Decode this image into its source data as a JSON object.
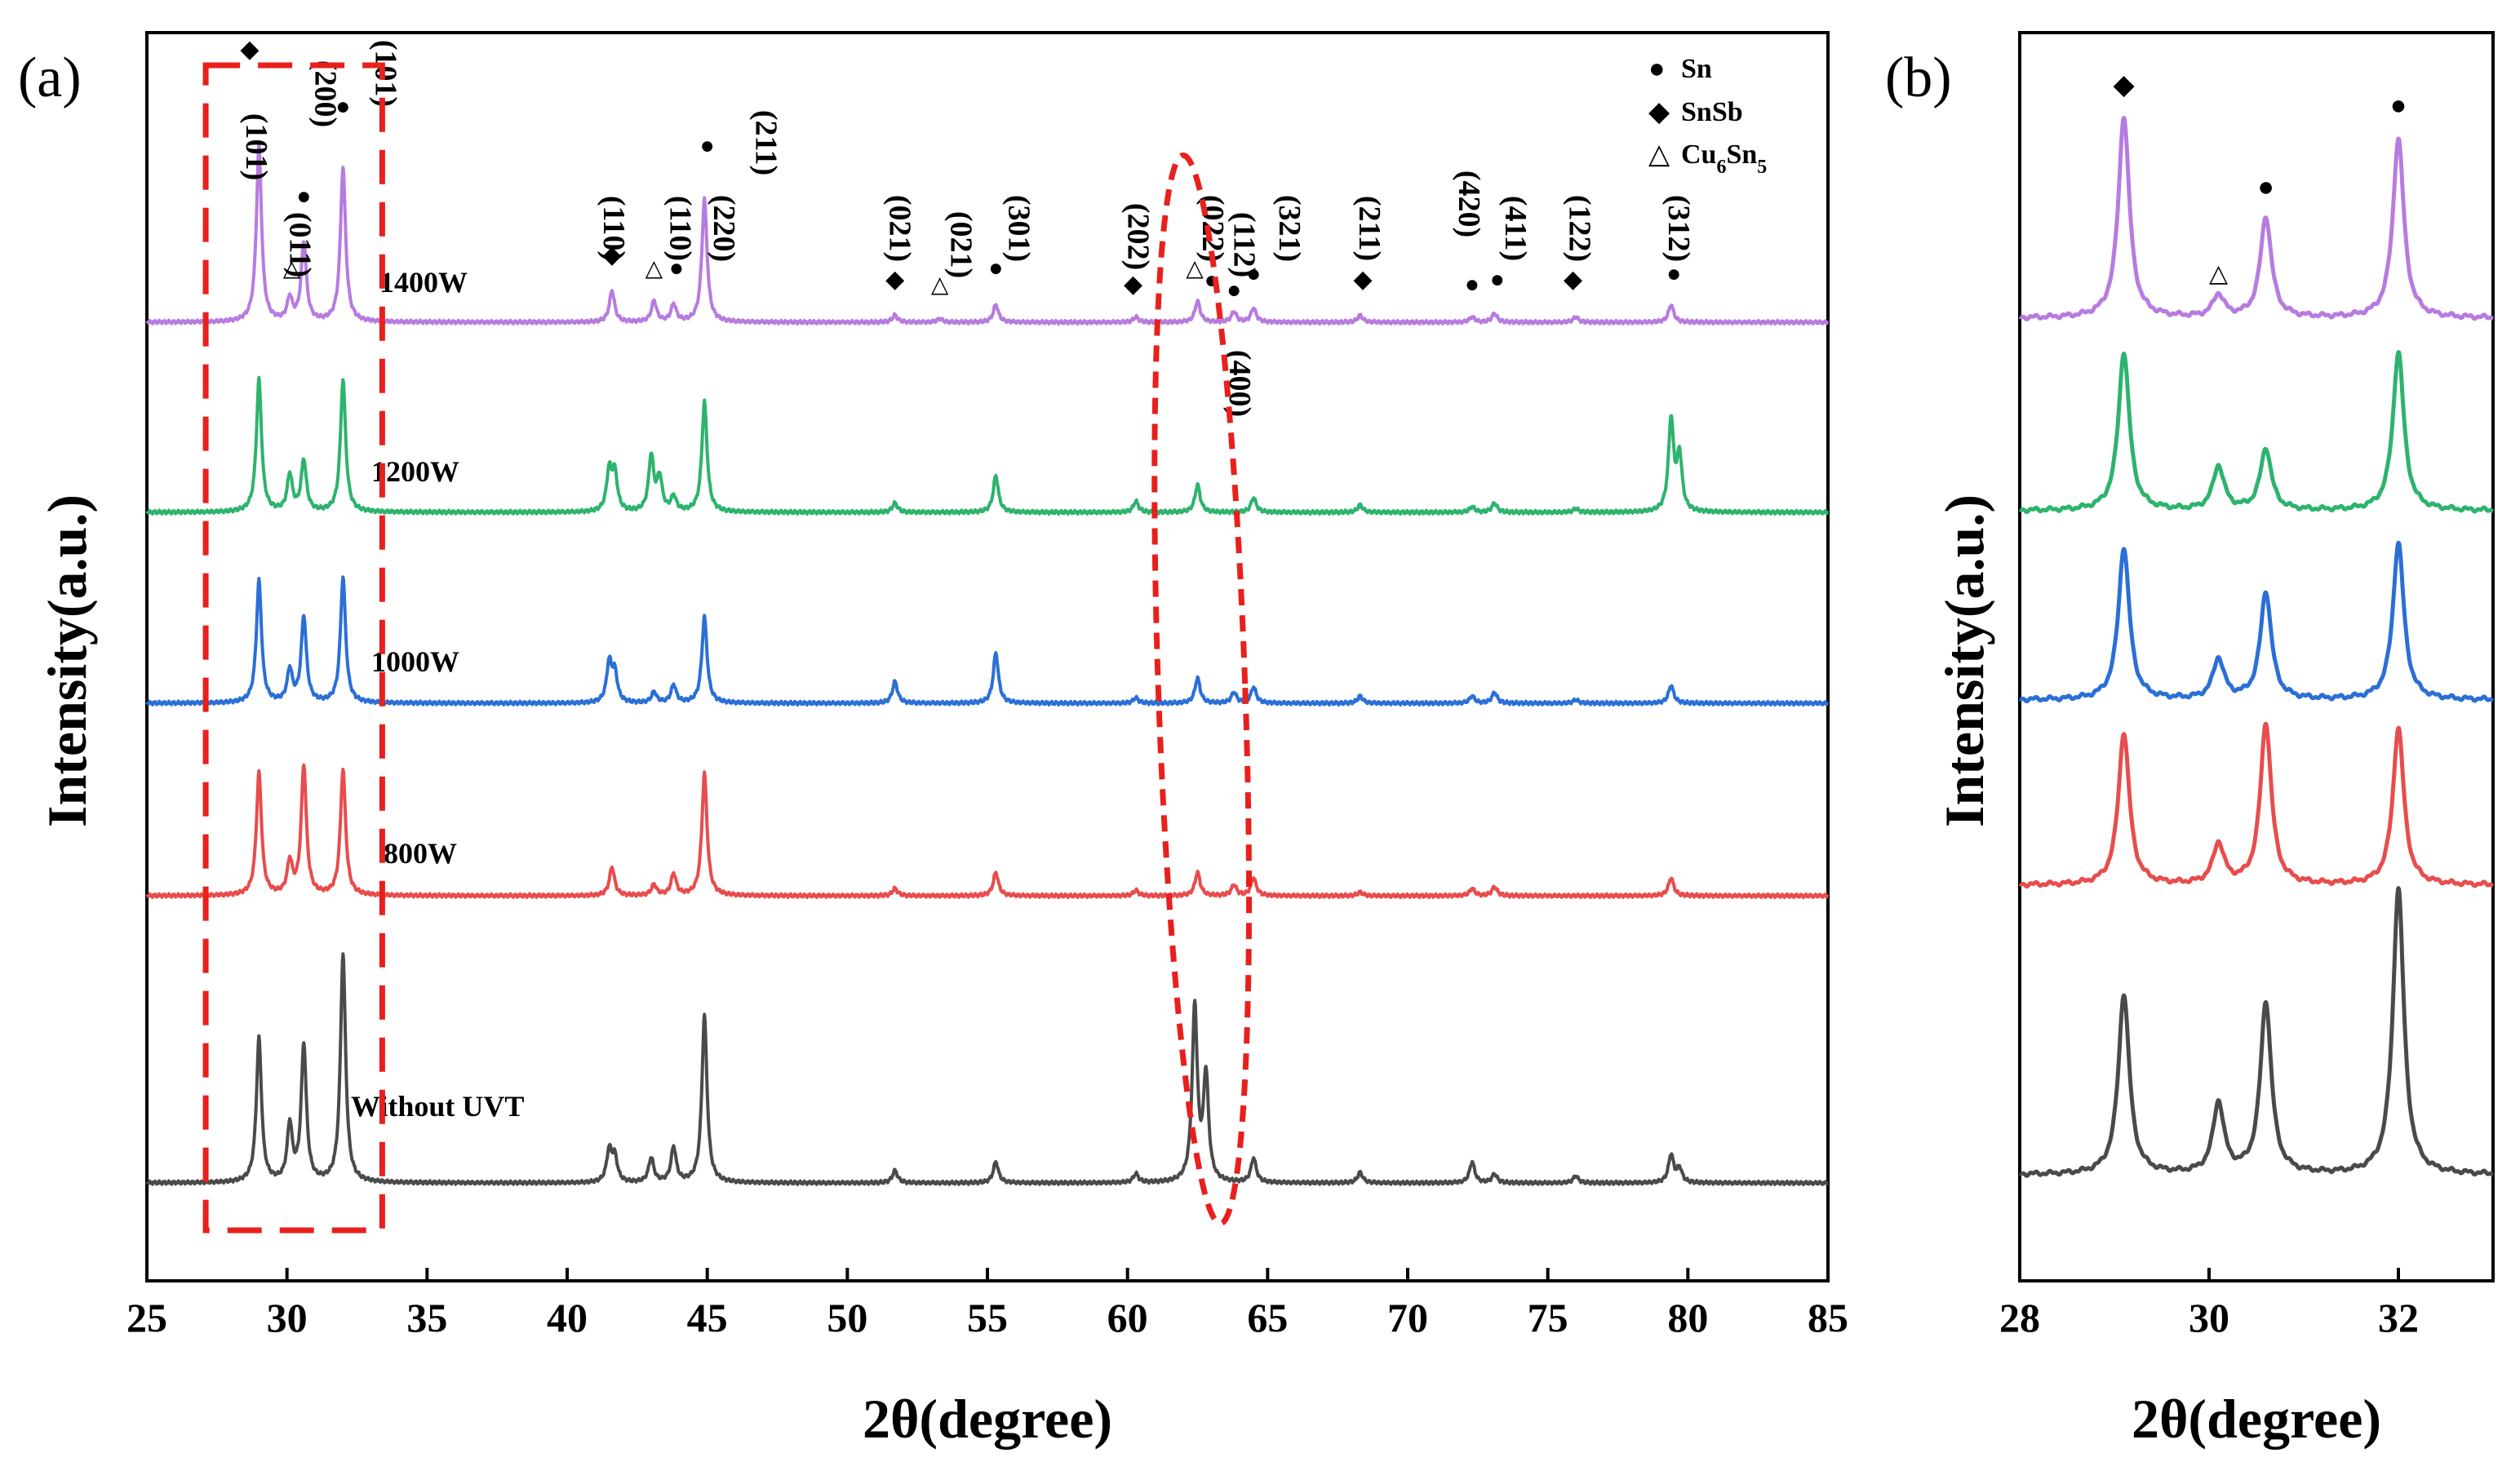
{
  "chart_data": [
    {
      "panel": "(a)",
      "type": "line",
      "title": "",
      "xlabel": "2θ(degree)",
      "ylabel": "Intensity(a.u.)",
      "xlim": [
        25,
        85
      ],
      "xticks": [
        25,
        30,
        35,
        40,
        45,
        50,
        55,
        60,
        65,
        70,
        75,
        80,
        85
      ],
      "series": [
        {
          "name": "Without UVT",
          "color": "#4a4a4a",
          "offset": 0,
          "peaks": [
            [
              29.0,
              0.82
            ],
            [
              30.1,
              0.32
            ],
            [
              30.6,
              0.78
            ],
            [
              32.0,
              1.3
            ],
            [
              41.5,
              0.18
            ],
            [
              41.7,
              0.14
            ],
            [
              43.0,
              0.14
            ],
            [
              43.8,
              0.2
            ],
            [
              44.9,
              0.95
            ],
            [
              51.7,
              0.07
            ],
            [
              55.3,
              0.12
            ],
            [
              60.3,
              0.05
            ],
            [
              62.4,
              1.0
            ],
            [
              62.8,
              0.6
            ],
            [
              64.5,
              0.14
            ],
            [
              68.3,
              0.06
            ],
            [
              72.3,
              0.12
            ],
            [
              73.1,
              0.05
            ],
            [
              76.0,
              0.04
            ],
            [
              79.4,
              0.16
            ],
            [
              79.7,
              0.08
            ]
          ]
        },
        {
          "name": "800W",
          "color": "#e84c4c",
          "offset": 1,
          "peaks": [
            [
              29.0,
              0.68
            ],
            [
              30.1,
              0.18
            ],
            [
              30.6,
              0.72
            ],
            [
              32.0,
              0.7
            ],
            [
              41.6,
              0.16
            ],
            [
              43.1,
              0.06
            ],
            [
              43.8,
              0.12
            ],
            [
              44.9,
              0.68
            ],
            [
              51.7,
              0.04
            ],
            [
              55.3,
              0.13
            ],
            [
              60.3,
              0.03
            ],
            [
              62.5,
              0.13
            ],
            [
              63.8,
              0.06
            ],
            [
              64.5,
              0.1
            ],
            [
              68.3,
              0.02
            ],
            [
              72.3,
              0.04
            ],
            [
              73.1,
              0.05
            ],
            [
              79.4,
              0.1
            ]
          ]
        },
        {
          "name": "1000W",
          "color": "#2b6fd6",
          "offset": 2,
          "peaks": [
            [
              29.0,
              0.68
            ],
            [
              30.1,
              0.18
            ],
            [
              30.6,
              0.48
            ],
            [
              32.0,
              0.7
            ],
            [
              41.5,
              0.22
            ],
            [
              41.7,
              0.16
            ],
            [
              43.1,
              0.06
            ],
            [
              43.8,
              0.1
            ],
            [
              44.9,
              0.48
            ],
            [
              51.7,
              0.12
            ],
            [
              55.3,
              0.28
            ],
            [
              60.3,
              0.03
            ],
            [
              62.5,
              0.14
            ],
            [
              63.8,
              0.06
            ],
            [
              64.5,
              0.09
            ],
            [
              68.3,
              0.04
            ],
            [
              72.3,
              0.04
            ],
            [
              73.1,
              0.06
            ],
            [
              76.0,
              0.02
            ],
            [
              79.4,
              0.1
            ]
          ]
        },
        {
          "name": "1200W",
          "color": "#2db36d",
          "offset": 3,
          "peaks": [
            [
              29.0,
              0.72
            ],
            [
              30.1,
              0.2
            ],
            [
              30.6,
              0.28
            ],
            [
              32.0,
              0.72
            ],
            [
              41.5,
              0.22
            ],
            [
              41.7,
              0.2
            ],
            [
              43.0,
              0.3
            ],
            [
              43.3,
              0.18
            ],
            [
              43.8,
              0.08
            ],
            [
              44.9,
              0.6
            ],
            [
              51.7,
              0.05
            ],
            [
              55.3,
              0.2
            ],
            [
              60.3,
              0.06
            ],
            [
              62.5,
              0.15
            ],
            [
              64.5,
              0.08
            ],
            [
              68.3,
              0.04
            ],
            [
              72.3,
              0.03
            ],
            [
              73.1,
              0.05
            ],
            [
              76.0,
              0.02
            ],
            [
              79.4,
              0.5
            ],
            [
              79.7,
              0.3
            ]
          ]
        },
        {
          "name": "1400W",
          "color": "#b77be0",
          "offset": 4,
          "peaks": [
            [
              29.0,
              1.0
            ],
            [
              30.1,
              0.13
            ],
            [
              30.6,
              0.45
            ],
            [
              32.0,
              0.88
            ],
            [
              41.6,
              0.18
            ],
            [
              43.1,
              0.12
            ],
            [
              43.8,
              0.1
            ],
            [
              44.9,
              0.7
            ],
            [
              51.7,
              0.04
            ],
            [
              53.3,
              0.02
            ],
            [
              55.3,
              0.1
            ],
            [
              60.3,
              0.03
            ],
            [
              62.5,
              0.12
            ],
            [
              63.8,
              0.06
            ],
            [
              64.5,
              0.08
            ],
            [
              68.3,
              0.04
            ],
            [
              72.3,
              0.03
            ],
            [
              73.1,
              0.05
            ],
            [
              76.0,
              0.03
            ],
            [
              79.4,
              0.1
            ]
          ]
        }
      ],
      "sample_labels": [
        "1400W",
        "1200W",
        "1000W",
        "800W",
        "Without UVT"
      ],
      "legend": [
        {
          "symbol": "●",
          "text": "Sn"
        },
        {
          "symbol": "◆",
          "text": "SnSb"
        },
        {
          "symbol": "△",
          "text": "Cu",
          "sub1": "6",
          "mid": "Sn",
          "sub2": "5"
        }
      ],
      "peak_annotations": [
        {
          "x": 28.9,
          "label": "(101)",
          "symbol": "◆"
        },
        {
          "x": 30.2,
          "label": "(011)",
          "symbol": "△"
        },
        {
          "x": 30.6,
          "label": "(200)",
          "symbol": "●"
        },
        {
          "x": 32.0,
          "label": "(101)",
          "symbol": "●"
        },
        {
          "x": 41.6,
          "label": "(110)",
          "symbol": "◆"
        },
        {
          "x": 43.1,
          "label": "(110)",
          "symbol": "△"
        },
        {
          "x": 43.9,
          "label": "(220)",
          "symbol": "●"
        },
        {
          "x": 45.0,
          "label": "(211)",
          "symbol": "●"
        },
        {
          "x": 51.7,
          "label": "(021)",
          "symbol": "◆"
        },
        {
          "x": 53.3,
          "label": "(021)",
          "symbol": "△"
        },
        {
          "x": 55.3,
          "label": "(301)",
          "symbol": "●"
        },
        {
          "x": 60.2,
          "label": "(202)",
          "symbol": "◆"
        },
        {
          "x": 62.4,
          "label": "(022)",
          "symbol": "△"
        },
        {
          "x": 63.0,
          "label": "(112)",
          "symbol": "●"
        },
        {
          "x": 63.8,
          "label": "(400)",
          "symbol": "●"
        },
        {
          "x": 64.5,
          "label": "(321)",
          "symbol": "●"
        },
        {
          "x": 68.4,
          "label": "(211)",
          "symbol": "◆"
        },
        {
          "x": 72.3,
          "label": "(420)",
          "symbol": "●"
        },
        {
          "x": 73.2,
          "label": "(411)",
          "symbol": "●"
        },
        {
          "x": 75.9,
          "label": "(122)",
          "symbol": "◆"
        },
        {
          "x": 79.5,
          "label": "(312)",
          "symbol": "●"
        }
      ],
      "highlights": [
        {
          "shape": "rectangle",
          "x_range": [
            27.1,
            33.4
          ],
          "style": "dashed",
          "color": "#e8201c"
        },
        {
          "shape": "ellipse",
          "x_range": [
            61.1,
            64.2
          ],
          "style": "dashed",
          "color": "#e8201c"
        }
      ]
    },
    {
      "panel": "(b)",
      "type": "line",
      "title": "",
      "xlabel": "2θ(degree)",
      "ylabel": "Intensity(a.u.)",
      "xlim": [
        28,
        33
      ],
      "xticks": [
        28,
        30,
        32
      ],
      "series": [
        {
          "name": "Without UVT",
          "color": "#4a4a4a",
          "offset": 0,
          "peaks": [
            [
              29.1,
              0.82
            ],
            [
              30.1,
              0.32
            ],
            [
              30.6,
              0.78
            ],
            [
              32.0,
              1.3
            ]
          ]
        },
        {
          "name": "800W",
          "color": "#e84c4c",
          "offset": 1,
          "peaks": [
            [
              29.1,
              0.68
            ],
            [
              30.1,
              0.18
            ],
            [
              30.6,
              0.72
            ],
            [
              32.0,
              0.7
            ]
          ]
        },
        {
          "name": "1000W",
          "color": "#2b6fd6",
          "offset": 2,
          "peaks": [
            [
              29.1,
              0.68
            ],
            [
              30.1,
              0.18
            ],
            [
              30.6,
              0.48
            ],
            [
              32.0,
              0.7
            ]
          ]
        },
        {
          "name": "1200W",
          "color": "#2db36d",
          "offset": 3,
          "peaks": [
            [
              29.1,
              0.72
            ],
            [
              30.1,
              0.2
            ],
            [
              30.6,
              0.28
            ],
            [
              32.0,
              0.72
            ]
          ]
        },
        {
          "name": "1400W",
          "color": "#b77be0",
          "offset": 4,
          "peaks": [
            [
              29.1,
              0.9
            ],
            [
              30.1,
              0.1
            ],
            [
              30.6,
              0.45
            ],
            [
              32.0,
              0.8
            ]
          ]
        }
      ],
      "peak_markers": [
        {
          "x": 29.1,
          "symbol": "◆"
        },
        {
          "x": 30.1,
          "symbol": "△"
        },
        {
          "x": 30.6,
          "symbol": "●"
        },
        {
          "x": 32.0,
          "symbol": "●"
        }
      ]
    }
  ]
}
